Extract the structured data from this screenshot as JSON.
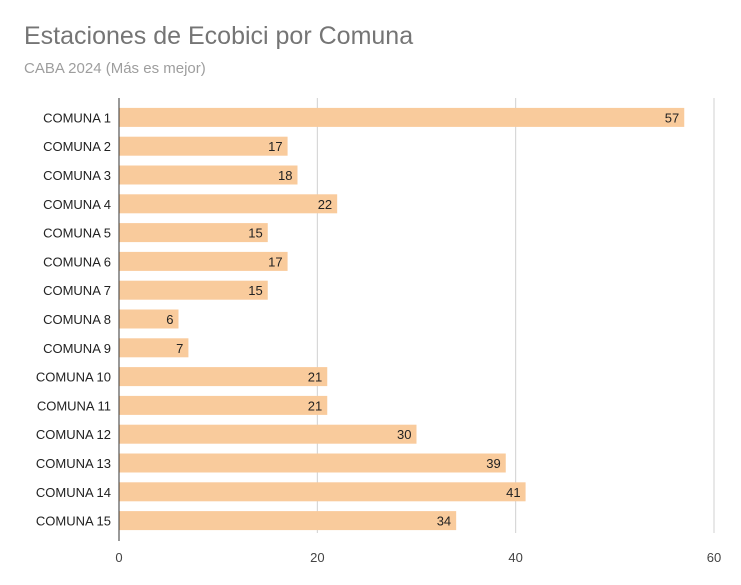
{
  "chart_data": {
    "type": "bar",
    "orientation": "horizontal",
    "title": "Estaciones de Ecobici por Comuna",
    "subtitle": "CABA 2024 (Más es mejor)",
    "xlabel": "",
    "ylabel": "",
    "categories": [
      "COMUNA 1",
      "COMUNA 2",
      "COMUNA 3",
      "COMUNA 4",
      "COMUNA 5",
      "COMUNA 6",
      "COMUNA 7",
      "COMUNA 8",
      "COMUNA 9",
      "COMUNA 10",
      "COMUNA 11",
      "COMUNA 12",
      "COMUNA 13",
      "COMUNA 14",
      "COMUNA 15"
    ],
    "values": [
      57,
      17,
      18,
      22,
      15,
      17,
      15,
      6,
      7,
      21,
      21,
      30,
      39,
      41,
      34
    ],
    "xlim": [
      0,
      60
    ],
    "xticks": [
      0,
      20,
      40,
      60
    ],
    "grid": true,
    "legend": "none",
    "bar_color": "#f9cb9c",
    "grid_color": "#d0d0d0",
    "axis_color": "#333333"
  }
}
